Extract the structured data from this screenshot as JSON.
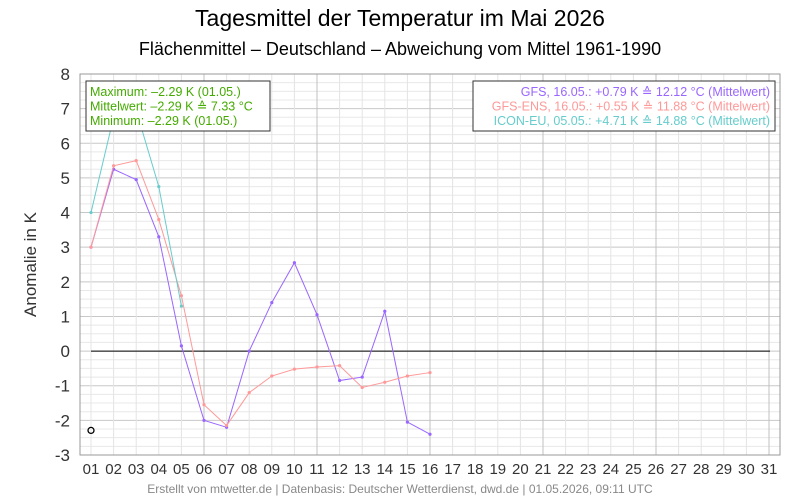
{
  "chart_data": {
    "type": "line",
    "title": "Tagesmittel der Temperatur im Mai 2026",
    "subtitle": "Flächenmittel – Deutschland – Abweichung vom Mittel 1961-1990",
    "ylabel": "Anomalie in K",
    "xlabel": "",
    "ylim": [
      -3,
      8
    ],
    "xlim": [
      1,
      31
    ],
    "grid": true,
    "x_tick_labels": [
      "01",
      "02",
      "03",
      "04",
      "05",
      "06",
      "07",
      "08",
      "09",
      "10",
      "11",
      "12",
      "13",
      "14",
      "15",
      "16",
      "17",
      "18",
      "19",
      "20",
      "21",
      "22",
      "23",
      "24",
      "25",
      "26",
      "27",
      "28",
      "29",
      "30",
      "31"
    ],
    "y_tick_labels": [
      "-3",
      "-2",
      "-1",
      "0",
      "1",
      "2",
      "3",
      "4",
      "5",
      "6",
      "7",
      "8"
    ],
    "series": [
      {
        "key": "gfs",
        "color": "#9966ff",
        "x": [
          1,
          2,
          3,
          4,
          5,
          6,
          7,
          8,
          9,
          10,
          11,
          12,
          13,
          14,
          15,
          16
        ],
        "values": [
          3.0,
          5.25,
          4.95,
          3.3,
          0.15,
          -2.0,
          -2.2,
          0.0,
          1.4,
          2.55,
          1.05,
          -0.85,
          -0.75,
          1.15,
          -2.05,
          -2.4
        ]
      },
      {
        "key": "gfs-ens",
        "color": "#ff9999",
        "x": [
          1,
          2,
          3,
          4,
          5,
          6,
          7,
          8,
          9,
          10,
          11,
          12,
          13,
          14,
          15,
          16
        ],
        "values": [
          3.0,
          5.35,
          5.5,
          3.8,
          1.6,
          -1.55,
          -2.15,
          -1.2,
          -0.72,
          -0.52,
          -0.46,
          -0.42,
          -1.05,
          -0.9,
          -0.72,
          -0.62
        ]
      },
      {
        "key": "icon-eu",
        "color": "#66cccc",
        "x": [
          1,
          2,
          3,
          4,
          5
        ],
        "values": [
          4.0,
          6.75,
          6.95,
          4.75,
          1.3
        ]
      }
    ],
    "observed": {
      "x": 1,
      "value": -2.29,
      "color": "#000000"
    },
    "stats_box": {
      "color": "#44aa00",
      "lines": [
        "Maximum:  –2.29 K  (01.05.)",
        "Mittelwert:  –2.29 K  ≙  7.33 °C",
        "Minimum:  –2.29 K  (01.05.)"
      ]
    },
    "legend": {
      "placement": "top-right",
      "entries": [
        {
          "label": "GFS, 16.05.: +0.79 K  ≙  12.12 °C (Mittelwert)",
          "color": "#9966ff"
        },
        {
          "label": "GFS-ENS, 16.05.: +0.55 K  ≙  11.88 °C (Mittelwert)",
          "color": "#ff9999"
        },
        {
          "label": "ICON-EU, 05.05.: +4.71 K  ≙  14.88 °C (Mittelwert)",
          "color": "#66cccc"
        }
      ]
    },
    "credit": "Erstellt von mtwetter.de | Datenbasis: Deutscher Wetterdienst, dwd.de | 01.05.2026, 09:11 UTC"
  }
}
